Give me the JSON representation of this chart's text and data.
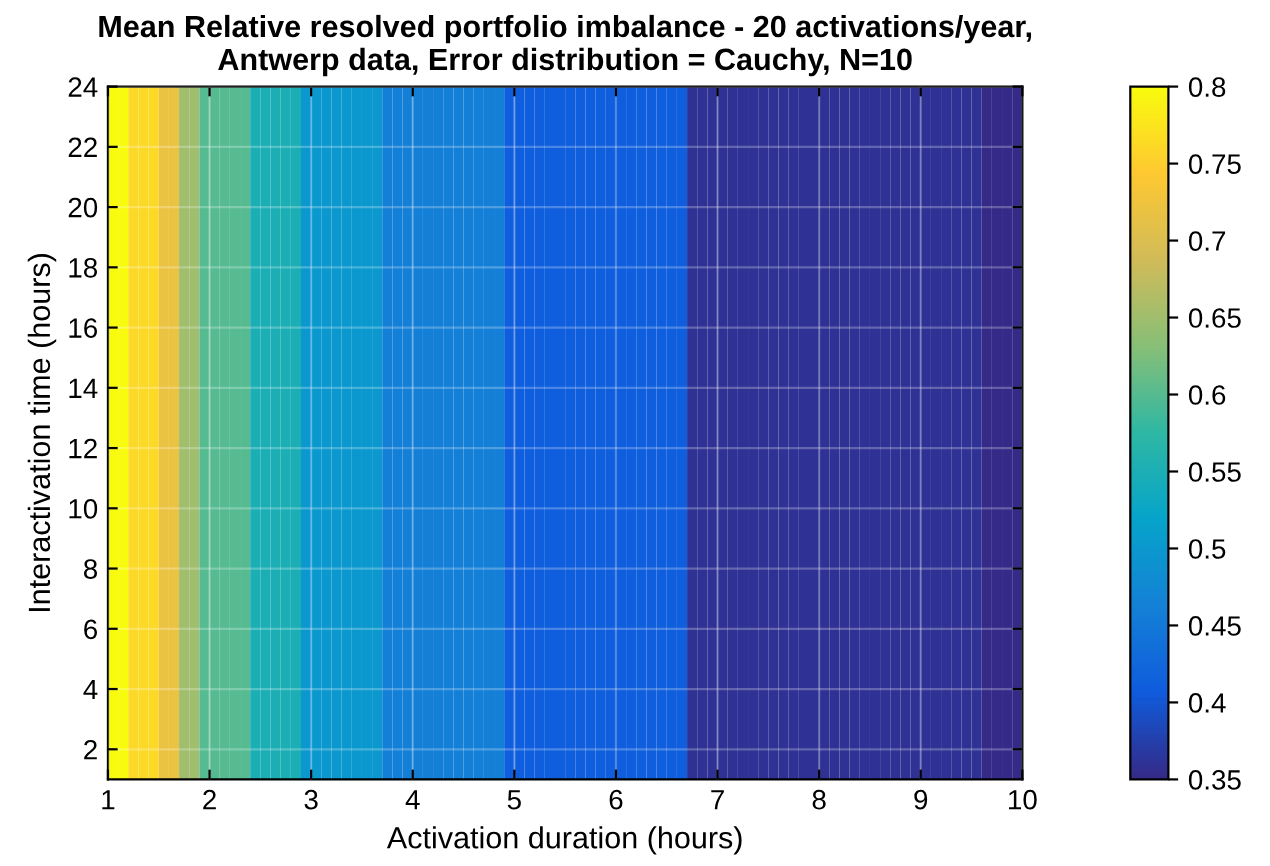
{
  "chart_data": {
    "type": "heatmap",
    "title": "Mean Relative resolved portfolio imbalance - 20 activations/year,\nAntwerp data, Error distribution = Cauchy, N=10",
    "xlabel": "Activation duration (hours)",
    "ylabel": "Interactivation time (hours)",
    "cells": [
      [
        0.8,
        0.8,
        0.76,
        0.76,
        0.76,
        0.72,
        0.72,
        0.65,
        0.65,
        0.6,
        0.6,
        0.6,
        0.6,
        0.6,
        0.55,
        0.55,
        0.55,
        0.55,
        0.55,
        0.5,
        0.5,
        0.5,
        0.5,
        0.5,
        0.5,
        0.5,
        0.5,
        0.46,
        0.46,
        0.46,
        0.46,
        0.46,
        0.46,
        0.46,
        0.46,
        0.46,
        0.46,
        0.46,
        0.46,
        0.41,
        0.41,
        0.41,
        0.41,
        0.41,
        0.41,
        0.41,
        0.41,
        0.41,
        0.41,
        0.41,
        0.41,
        0.41,
        0.41,
        0.41,
        0.41,
        0.41,
        0.41,
        0.36,
        0.36,
        0.36,
        0.36,
        0.36,
        0.36,
        0.36,
        0.36,
        0.36,
        0.36,
        0.36,
        0.36,
        0.36,
        0.36,
        0.36,
        0.36,
        0.36,
        0.36,
        0.36,
        0.36,
        0.36,
        0.36,
        0.36,
        0.36,
        0.36,
        0.36,
        0.36,
        0.36,
        0.36,
        0.35,
        0.35,
        0.35,
        0.35
      ]
    ],
    "xlim": [
      1,
      10
    ],
    "ylim": [
      1,
      24
    ],
    "xticks": [
      1,
      2,
      3,
      4,
      5,
      6,
      7,
      8,
      9,
      10
    ],
    "yticks": [
      2,
      4,
      6,
      8,
      10,
      12,
      14,
      16,
      18,
      20,
      22,
      24
    ],
    "clim": [
      0.35,
      0.8
    ],
    "cticks": [
      0.35,
      0.4,
      0.45,
      0.5,
      0.55,
      0.6,
      0.65,
      0.7,
      0.75,
      0.8
    ],
    "grid": true
  }
}
